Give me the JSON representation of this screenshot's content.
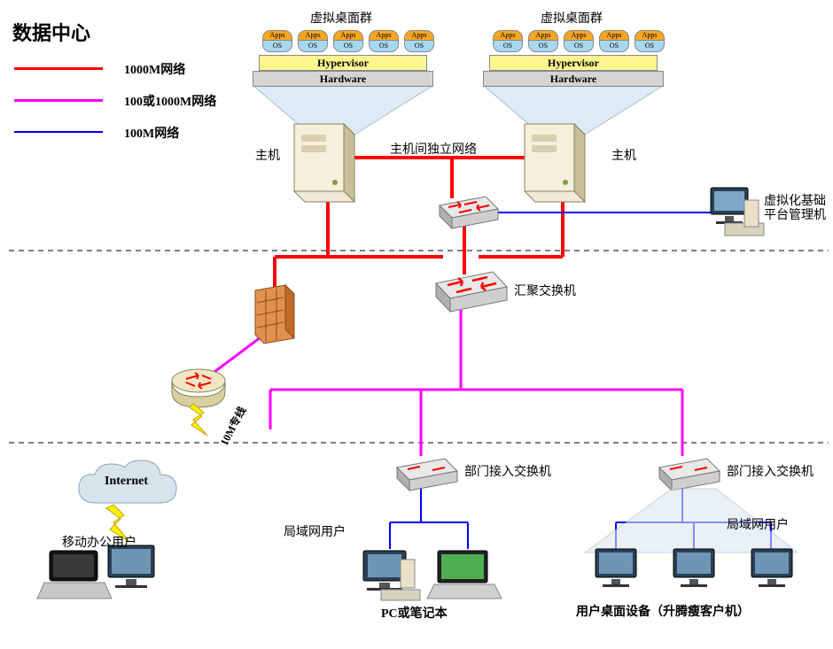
{
  "title": "数据中心",
  "legend": {
    "l1": {
      "color": "#ff0000",
      "label": "1000M网络"
    },
    "l2": {
      "color": "#ff00ff",
      "label": "100或1000M网络"
    },
    "l3": {
      "color": "#0000ff",
      "label": "100M网络"
    }
  },
  "vgroup_label": "虚拟桌面群",
  "app_top": "Apps",
  "app_bot": "OS",
  "hypervisor": "Hypervisor",
  "hardware": "Hardware",
  "host_label": "主机",
  "host_net_label": "主机间独立网络",
  "mgmt_label_1": "虚拟化基础",
  "mgmt_label_2": "平台管理机",
  "agg_switch": "汇聚交换机",
  "dept_switch": "部门接入交换机",
  "lan_users": "局域网用户",
  "pc_label": "PC或笔记本",
  "thin_label": "用户桌面设备（升腾瘦客户机）",
  "mobile_label": "移动办公用户",
  "internet": "Internet",
  "wan_label": "10M专线",
  "colors": {
    "red": "#ff0000",
    "magenta": "#ff00ff",
    "blue": "#0000ff",
    "gray": "#bfbfbf",
    "darkgray": "#7f7f7f",
    "black": "#000",
    "firewall": "#e1914d",
    "firewall_dark": "#8a4a1a",
    "server_light": "#f0ead6",
    "server_dark": "#c9bf9a",
    "switch_light": "#e8e8e8",
    "switch_dark": "#b0b0b0",
    "monitor": "#3a5f7d",
    "cloud": "#d8e4ec",
    "router": "#efe7c2"
  },
  "stroke": {
    "thick": 4,
    "med": 2,
    "thin": 1
  }
}
